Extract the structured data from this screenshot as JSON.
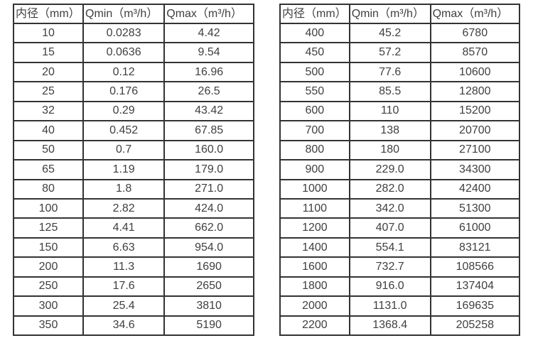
{
  "colors": {
    "background": "#ffffff",
    "border": "#333333",
    "text": "#3f3f3f"
  },
  "tables": [
    {
      "name": "flow-rates-small-diameters",
      "headers": [
        "内径（mm）",
        "Qmin（m³/h）",
        "Qmax（m³/h）"
      ],
      "rows": [
        [
          "10",
          "0.0283",
          "4.42"
        ],
        [
          "15",
          "0.0636",
          "9.54"
        ],
        [
          "20",
          "0.12",
          "16.96"
        ],
        [
          "25",
          "0.176",
          "26.5"
        ],
        [
          "32",
          "0.29",
          "43.42"
        ],
        [
          "40",
          "0.452",
          "67.85"
        ],
        [
          "50",
          "0.7",
          "160.0"
        ],
        [
          "65",
          "1.19",
          "179.0"
        ],
        [
          "80",
          "1.8",
          "271.0"
        ],
        [
          "100",
          "2.82",
          "424.0"
        ],
        [
          "125",
          "4.41",
          "662.0"
        ],
        [
          "150",
          "6.63",
          "954.0"
        ],
        [
          "200",
          "11.3",
          "1690"
        ],
        [
          "250",
          "17.6",
          "2650"
        ],
        [
          "300",
          "25.4",
          "3810"
        ],
        [
          "350",
          "34.6",
          "5190"
        ]
      ]
    },
    {
      "name": "flow-rates-large-diameters",
      "headers": [
        "内径（mm）",
        "Qmin（m³/h）",
        "Qmax（m³/h）"
      ],
      "rows": [
        [
          "400",
          "45.2",
          "6780"
        ],
        [
          "450",
          "57.2",
          "8570"
        ],
        [
          "500",
          "77.6",
          "10600"
        ],
        [
          "550",
          "85.5",
          "12800"
        ],
        [
          "600",
          "110",
          "15200"
        ],
        [
          "700",
          "138",
          "20700"
        ],
        [
          "800",
          "180",
          "27100"
        ],
        [
          "900",
          "229.0",
          "34300"
        ],
        [
          "1000",
          "282.0",
          "42400"
        ],
        [
          "1100",
          "342.0",
          "51300"
        ],
        [
          "1200",
          "407.0",
          "61000"
        ],
        [
          "1400",
          "554.1",
          "83121"
        ],
        [
          "1600",
          "732.7",
          "108566"
        ],
        [
          "1800",
          "916.0",
          "137404"
        ],
        [
          "2000",
          "1131.0",
          "169635"
        ],
        [
          "2200",
          "1368.4",
          "205258"
        ]
      ]
    }
  ]
}
